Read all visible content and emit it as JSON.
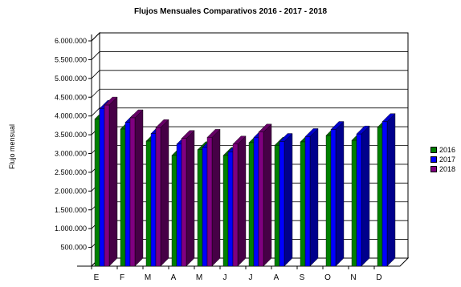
{
  "chart_data": {
    "type": "bar",
    "title": "Flujos Mensuales Comparativos 2016 - 2017 - 2018",
    "ylabel": "Flujo mensual",
    "xlabel": "",
    "categories": [
      "E",
      "F",
      "M",
      "A",
      "M",
      "J",
      "J",
      "A",
      "S",
      "O",
      "N",
      "D"
    ],
    "y_ticks": [
      "500.000",
      "1.000.000",
      "1.500.000",
      "2.000.000",
      "2.500.000",
      "3.000.000",
      "3.500.000",
      "4.000.000",
      "4.500.000",
      "5.000.000",
      "5.500.000",
      "6.000.000"
    ],
    "ylim": [
      0,
      6000000
    ],
    "grid": true,
    "legend_position": "right",
    "series": [
      {
        "name": "2016",
        "color": "#008000",
        "values": [
          3920000,
          3650000,
          3330000,
          2950000,
          3100000,
          2950000,
          3290000,
          3220000,
          3310000,
          3480000,
          3350000,
          3700000
        ]
      },
      {
        "name": "2017",
        "color": "#0000ff",
        "values": [
          4200000,
          3830000,
          3530000,
          3250000,
          3160000,
          3040000,
          3430000,
          3320000,
          3450000,
          3640000,
          3520000,
          3850000
        ]
      },
      {
        "name": "2018",
        "color": "#800080",
        "values": [
          4290000,
          3950000,
          3690000,
          3400000,
          3430000,
          3250000,
          3570000,
          null,
          null,
          null,
          null,
          null
        ]
      }
    ]
  }
}
